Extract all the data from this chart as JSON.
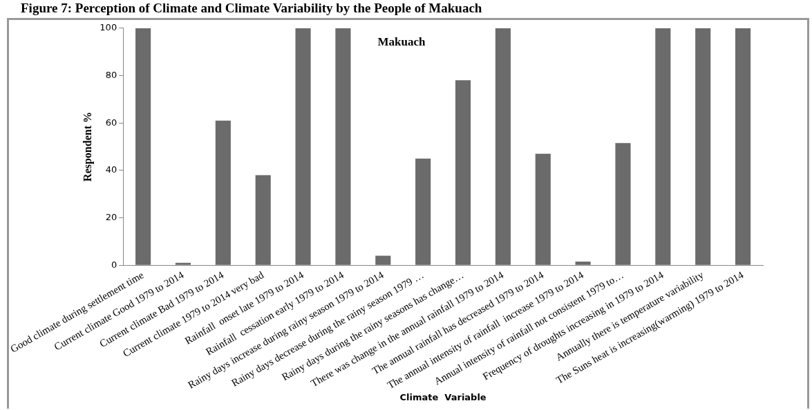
{
  "chart_data": {
    "type": "bar",
    "title": "Makuach",
    "xlabel": "Climate  Variable",
    "ylabel": "Respondent %",
    "annotations": [
      "Figure 7: Perception of Climate and Climate Variability by the People of Makuach"
    ],
    "categories": [
      "Good climate during settlement time",
      "Current climate Good 1979 to 2014",
      "Current climate Bad 1979 to 2014",
      "Current climate 1979 to 2014 very bad",
      "Rainfall  onset late 1979 to 2014",
      "Rainfall  cessation early 1979 to 2014",
      "Rainy days increase during rainy season 1979 to 2014",
      "Rainy days decrease during the rainy season 1979 …",
      "Rainy days during the rainy seasons has change…",
      "There was change in the annual rainfall 1979 to 2014",
      "The annual rainfall has decreased 1979 to 2014",
      "The annual intensity of rainfall  increase 1979 to 2014",
      "Annual intensity of rainfall not consistent 1979 to…",
      "Frequency of droughts increasing in 1979 to 2014",
      "Annually there is temperature variability",
      "The Suns heat is increasing(warming) 1979 to 2014"
    ],
    "values": [
      100,
      1,
      61,
      38,
      100,
      100,
      4,
      45,
      78,
      100,
      47,
      1.5,
      51.5,
      100,
      100,
      100
    ],
    "color": "#6b6b6b",
    "ylim": [
      0,
      100
    ],
    "yticks": [
      0,
      20,
      40,
      60,
      80,
      100
    ],
    "grid": false,
    "legend": false
  }
}
